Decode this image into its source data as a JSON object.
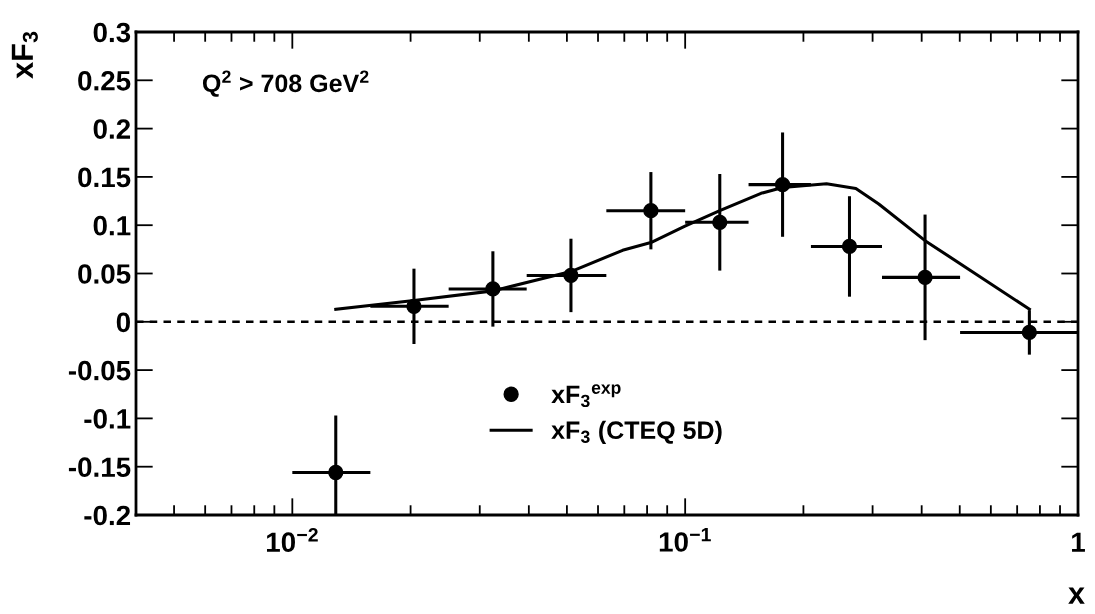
{
  "chart_data": {
    "type": "scatter",
    "xlabel": "x",
    "ylabel": "xF$_{3}$",
    "annotations": [
      "Q$^{2}$ > 708 GeV$^{2}$"
    ],
    "log": "x",
    "xlim": [
      0.004,
      1
    ],
    "ylim": [
      -0.2,
      0.3
    ],
    "xticks": [
      {
        "value": 0.01,
        "label": "10$^{−2}$"
      },
      {
        "value": 0.1,
        "label": "10$^{−1}$"
      },
      1
    ],
    "yticks": [
      -0.2,
      -0.15,
      -0.1,
      -0.05,
      0,
      0.05,
      0.1,
      0.15,
      0.2,
      0.25,
      0.3
    ],
    "legend": "bottom",
    "grid": false,
    "ref_lines": [
      {
        "axis": "y",
        "value": 0,
        "line_style": "dashed",
        "color": "#000000"
      }
    ],
    "series": [
      {
        "name": "xF$_{3}$$^{exp}$",
        "marker": "circle",
        "color": "#000000",
        "x": [
          0.0129,
          0.0204,
          0.0324,
          0.0512,
          0.0818,
          0.1225,
          0.177,
          0.262,
          0.408,
          0.752
        ],
        "values": [
          -0.156,
          0.016,
          0.034,
          0.048,
          0.115,
          0.103,
          0.142,
          0.078,
          0.046,
          -0.011
        ],
        "errors": [
          0.059,
          0.039,
          0.039,
          0.038,
          0.04,
          0.05,
          0.054,
          0.052,
          0.065,
          0.023
        ],
        "xerrors": [
          [
            0.01,
            0.0158
          ],
          [
            0.0158,
            0.025
          ],
          [
            0.025,
            0.0395
          ],
          [
            0.0395,
            0.063
          ],
          [
            0.063,
            0.1
          ],
          [
            0.1,
            0.145
          ],
          [
            0.145,
            0.209
          ],
          [
            0.209,
            0.317
          ],
          [
            0.317,
            0.501
          ],
          [
            0.501,
            1
          ]
        ]
      },
      {
        "name": "xF$_{3}$ (CTEQ 5D)",
        "type": "line",
        "marker": "none",
        "color": "#000000",
        "line_style": "solid",
        "x": [
          0.0129,
          0.0204,
          0.0324,
          0.0512,
          0.0693,
          0.0818,
          0.0999,
          0.1225,
          0.156,
          0.177,
          0.229,
          0.272,
          0.311,
          0.408,
          0.752
        ],
        "values": [
          0.013,
          0.022,
          0.032,
          0.052,
          0.074,
          0.082,
          0.099,
          0.115,
          0.133,
          0.139,
          0.143,
          0.138,
          0.122,
          0.084,
          0.013
        ]
      }
    ]
  }
}
